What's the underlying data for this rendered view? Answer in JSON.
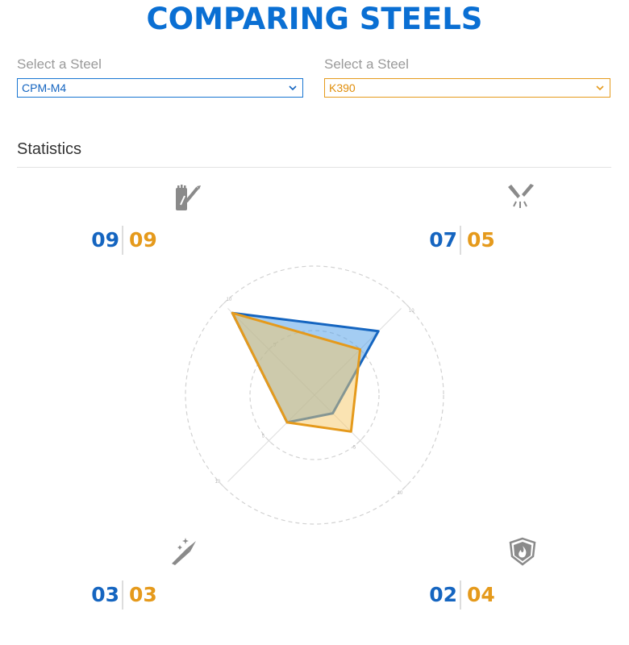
{
  "header": {
    "title": "COMPARING STEELS"
  },
  "selectors": [
    {
      "label": "Select a Steel",
      "value": "CPM-M4",
      "color": "#1565c0"
    },
    {
      "label": "Select a Steel",
      "value": "K390",
      "color": "#e59a1c"
    }
  ],
  "section": {
    "title": "Statistics"
  },
  "stats": [
    {
      "icon": "edge-retention-icon",
      "a": "09",
      "b": "09"
    },
    {
      "icon": "toughness-icon",
      "a": "07",
      "b": "05"
    },
    {
      "icon": "ease-of-sharpening-icon",
      "a": "03",
      "b": "03"
    },
    {
      "icon": "corrosion-resistance-icon",
      "a": "02",
      "b": "04"
    }
  ],
  "chart_data": {
    "type": "radar",
    "axes": [
      "top-left",
      "top-right",
      "bottom-right",
      "bottom-left"
    ],
    "axis_ticks": [
      "5",
      "10"
    ],
    "range": [
      0,
      10
    ],
    "series": [
      {
        "values": [
          9,
          7,
          2,
          3
        ],
        "stroke": "#1565c0",
        "fill": "#4a9be8"
      },
      {
        "values": [
          9,
          5,
          4,
          3
        ],
        "stroke": "#e59a1c",
        "fill": "#f6c766"
      }
    ]
  }
}
